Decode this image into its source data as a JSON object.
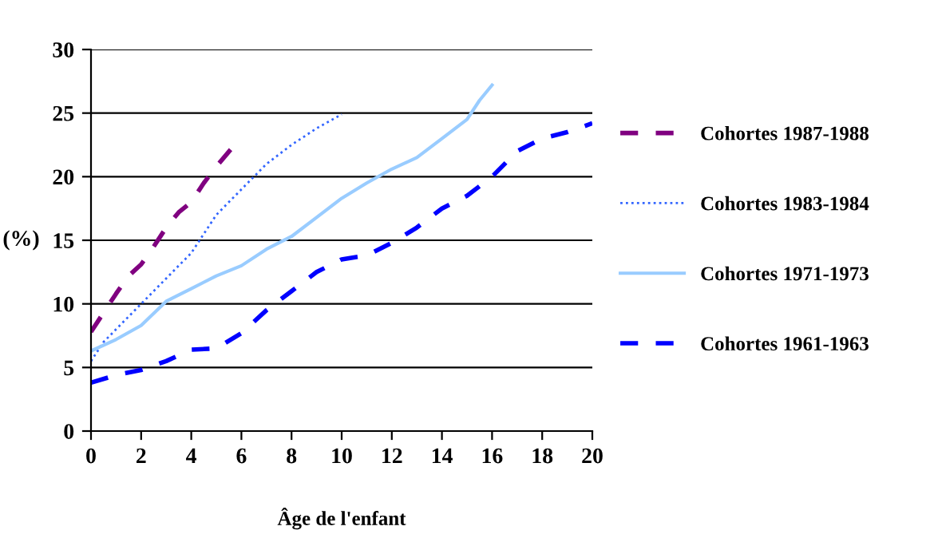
{
  "chart_data": {
    "type": "line",
    "xlabel": "Âge de l'enfant",
    "ylabel": "(%)",
    "xlim": [
      0,
      20
    ],
    "xticks": [
      0,
      2,
      4,
      6,
      8,
      10,
      12,
      14,
      16,
      18,
      20
    ],
    "ylim": [
      0,
      30
    ],
    "yticks": [
      0,
      5,
      10,
      15,
      20,
      25,
      30
    ],
    "grid": "y",
    "legend": "right",
    "series": [
      {
        "name": "Cohortes 1987-1988",
        "color": "#800080",
        "line_style": "dashed",
        "x": [
          0,
          0.5,
          1,
          1.5,
          2,
          2.5,
          3,
          3.5,
          4,
          4.5,
          5,
          5.6
        ],
        "values": [
          7.8,
          9.3,
          10.8,
          12.2,
          13.1,
          14.5,
          16,
          17.2,
          18,
          19.5,
          20.8,
          22.2
        ]
      },
      {
        "name": "Cohortes 1983-1984",
        "color": "#3366ff",
        "line_style": "dotted",
        "x": [
          0,
          0.5,
          1,
          1.5,
          2,
          2.5,
          3,
          3.5,
          4,
          4.5,
          5,
          6,
          6.5,
          7,
          8,
          9,
          10
        ],
        "values": [
          5.5,
          7,
          8,
          9,
          10,
          11,
          12,
          13,
          14,
          15.5,
          17,
          19,
          20,
          21,
          22.5,
          23.8,
          24.9
        ]
      },
      {
        "name": "Cohortes 1971-1973",
        "color": "#99ccff",
        "line_style": "solid",
        "x": [
          0,
          1,
          2,
          3,
          4,
          5,
          6,
          7,
          8,
          9,
          10,
          11,
          12,
          13,
          14,
          15,
          15.5,
          16
        ],
        "values": [
          6.3,
          7.2,
          8.3,
          10.2,
          11.2,
          12.2,
          13,
          14.3,
          15.3,
          16.8,
          18.3,
          19.5,
          20.6,
          21.5,
          23,
          24.5,
          26,
          27.2
        ]
      },
      {
        "name": "Cohortes 1961-1963",
        "color": "#0000ff",
        "line_style": "dashed",
        "x": [
          0,
          1,
          2,
          3,
          4,
          5,
          6,
          7,
          8,
          9,
          10,
          11,
          12,
          13,
          14,
          15,
          16,
          17,
          18,
          19,
          20
        ],
        "values": [
          3.8,
          4.4,
          4.8,
          5.5,
          6.4,
          6.5,
          7.7,
          9.5,
          11,
          12.5,
          13.5,
          13.8,
          14.8,
          16,
          17.5,
          18.5,
          20,
          22,
          23,
          23.5,
          24.2
        ]
      }
    ]
  }
}
